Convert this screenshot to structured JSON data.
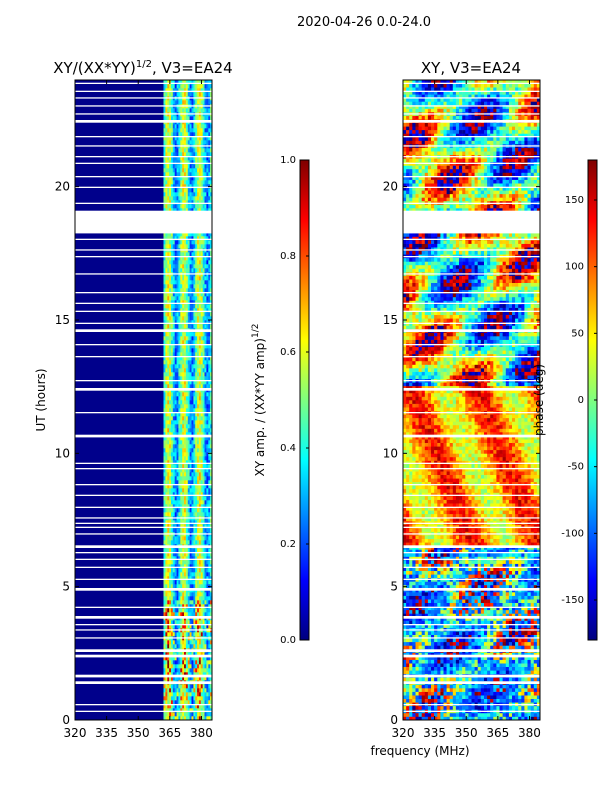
{
  "figure": {
    "suptitle": "2020-04-26 0.0-24.0",
    "shared_xlabel": "frequency (MHz)"
  },
  "colors": {
    "jet_stops": [
      "#00007f",
      "#0000ff",
      "#007fff",
      "#00ffff",
      "#7fff7f",
      "#ffff00",
      "#ff7f00",
      "#ff0000",
      "#7f0000"
    ],
    "gap": "#ffffff",
    "background_amp": "#00008b"
  },
  "chart_data": [
    {
      "type": "heatmap",
      "title_base": "XY/(XX*YY)",
      "title_exp": "1/2",
      "title_suffix": ", V3=EA24",
      "xlabel": "",
      "ylabel": "UT (hours)",
      "xlim": [
        320,
        385
      ],
      "ylim": [
        0,
        24
      ],
      "xticks": [
        320,
        335,
        350,
        365,
        380
      ],
      "yticks": [
        0,
        5,
        10,
        15,
        20
      ],
      "bright_band_mhz": [
        362,
        385
      ],
      "colorbar": {
        "label": "XY amp. / (XX*YY amp)",
        "label_exp": "1/2",
        "range": [
          0.0,
          1.0
        ],
        "ticks": [
          "0.0",
          "0.2",
          "0.4",
          "0.6",
          "0.8",
          "1.0"
        ]
      }
    },
    {
      "type": "heatmap",
      "title": "XY, V3=EA24",
      "xlabel": "frequency (MHz)",
      "ylabel": "",
      "xlim": [
        320,
        385
      ],
      "ylim": [
        0,
        24
      ],
      "xticks": [
        320,
        335,
        350,
        365,
        380
      ],
      "yticks": [
        0,
        5,
        10,
        15,
        20
      ],
      "colorbar": {
        "label": "phase (deg)",
        "range": [
          -180,
          180
        ],
        "ticks": [
          "-150",
          "-100",
          "-50",
          "0",
          "50",
          "100",
          "150"
        ]
      }
    }
  ],
  "flagged_gaps_hours": [
    [
      0.3,
      0.35
    ],
    [
      0.55,
      0.6
    ],
    [
      1.35,
      1.45
    ],
    [
      1.6,
      1.7
    ],
    [
      2.35,
      2.45
    ],
    [
      2.55,
      2.65
    ],
    [
      3.05,
      3.1
    ],
    [
      3.35,
      3.4
    ],
    [
      3.55,
      3.6
    ],
    [
      3.8,
      3.9
    ],
    [
      4.2,
      4.25
    ],
    [
      4.85,
      4.95
    ],
    [
      5.25,
      5.3
    ],
    [
      5.7,
      5.75
    ],
    [
      6.0,
      6.05
    ],
    [
      6.25,
      6.3
    ],
    [
      6.45,
      6.55
    ],
    [
      6.95,
      7.0
    ],
    [
      7.2,
      7.25
    ],
    [
      7.35,
      7.4
    ],
    [
      7.55,
      7.6
    ],
    [
      7.95,
      8.0
    ],
    [
      8.4,
      8.45
    ],
    [
      8.8,
      8.85
    ],
    [
      9.4,
      9.45
    ],
    [
      9.6,
      9.65
    ],
    [
      10.6,
      10.7
    ],
    [
      11.5,
      11.55
    ],
    [
      12.35,
      12.45
    ],
    [
      12.7,
      12.75
    ],
    [
      13.6,
      13.65
    ],
    [
      14.05,
      14.1
    ],
    [
      14.55,
      14.65
    ],
    [
      14.85,
      14.9
    ],
    [
      15.3,
      15.35
    ],
    [
      15.6,
      15.65
    ],
    [
      16.0,
      16.05
    ],
    [
      16.7,
      16.75
    ],
    [
      17.35,
      17.4
    ],
    [
      17.6,
      17.65
    ],
    [
      18.0,
      18.05
    ],
    [
      18.25,
      19.1
    ],
    [
      19.35,
      19.4
    ],
    [
      19.95,
      20.0
    ],
    [
      20.35,
      20.4
    ],
    [
      20.85,
      20.9
    ],
    [
      21.1,
      21.15
    ],
    [
      21.5,
      21.55
    ],
    [
      21.85,
      21.9
    ],
    [
      22.4,
      22.5
    ],
    [
      22.7,
      22.75
    ],
    [
      23.0,
      23.05
    ],
    [
      23.3,
      23.35
    ],
    [
      23.55,
      23.6
    ],
    [
      23.85,
      23.9
    ]
  ]
}
